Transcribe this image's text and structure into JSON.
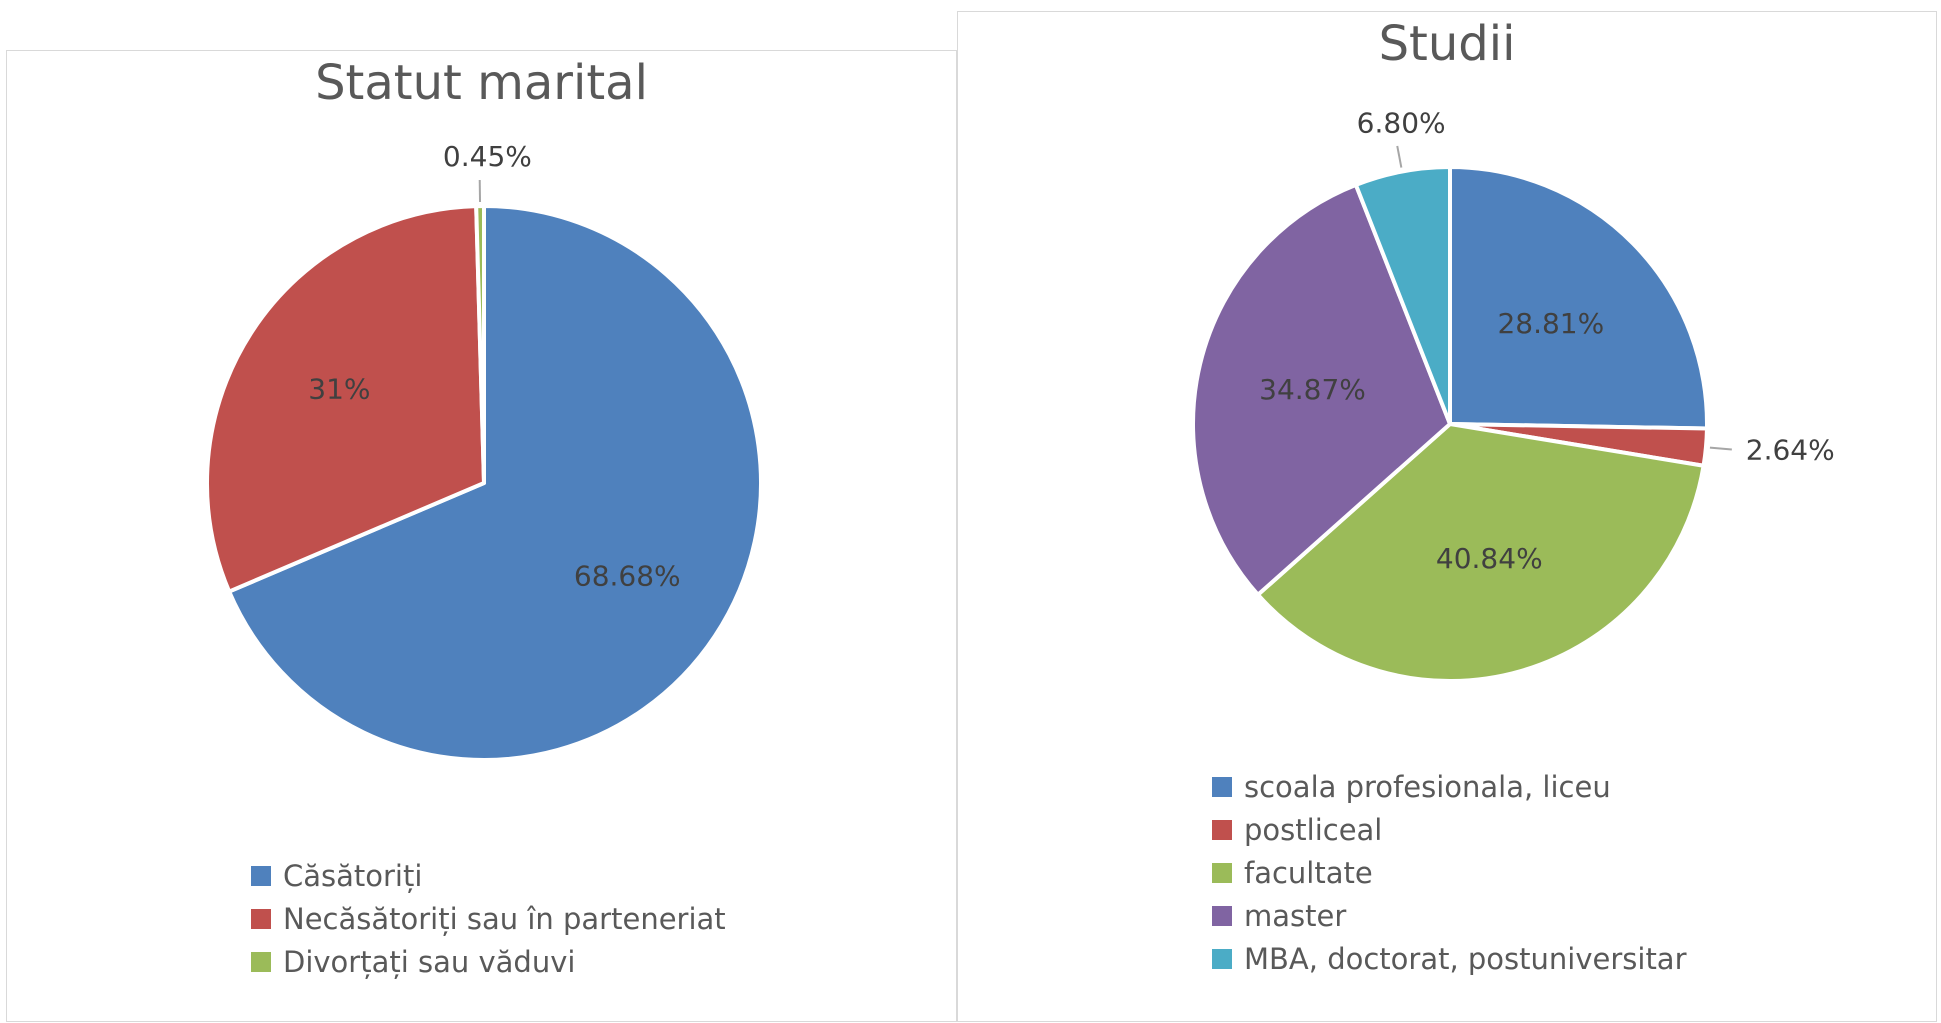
{
  "chart_data": [
    {
      "type": "pie",
      "title": "Statut marital",
      "categories": [
        "Căsătoriți",
        "Necăsătoriți sau în parteneriat",
        "Divorțați sau văduvi"
      ],
      "values": [
        68.68,
        31,
        0.45
      ],
      "labels": [
        "68.68%",
        "31%",
        "0.45%"
      ],
      "colors": [
        "#4F81BD",
        "#C0504D",
        "#9BBB59"
      ],
      "legend": "bottom"
    },
    {
      "type": "pie",
      "title": "Studii",
      "categories": [
        "scoala profesionala, liceu",
        "postliceal",
        "facultate",
        "master",
        "MBA, doctorat, postuniversitar"
      ],
      "values": [
        28.81,
        2.64,
        40.84,
        34.87,
        6.8
      ],
      "labels": [
        "28.81%",
        "2.64%",
        "40.84%",
        "34.87%",
        "6.80%"
      ],
      "colors": [
        "#4F81BD",
        "#C0504D",
        "#9BBB59",
        "#8064A2",
        "#4BACC6"
      ],
      "legend": "bottom"
    }
  ]
}
